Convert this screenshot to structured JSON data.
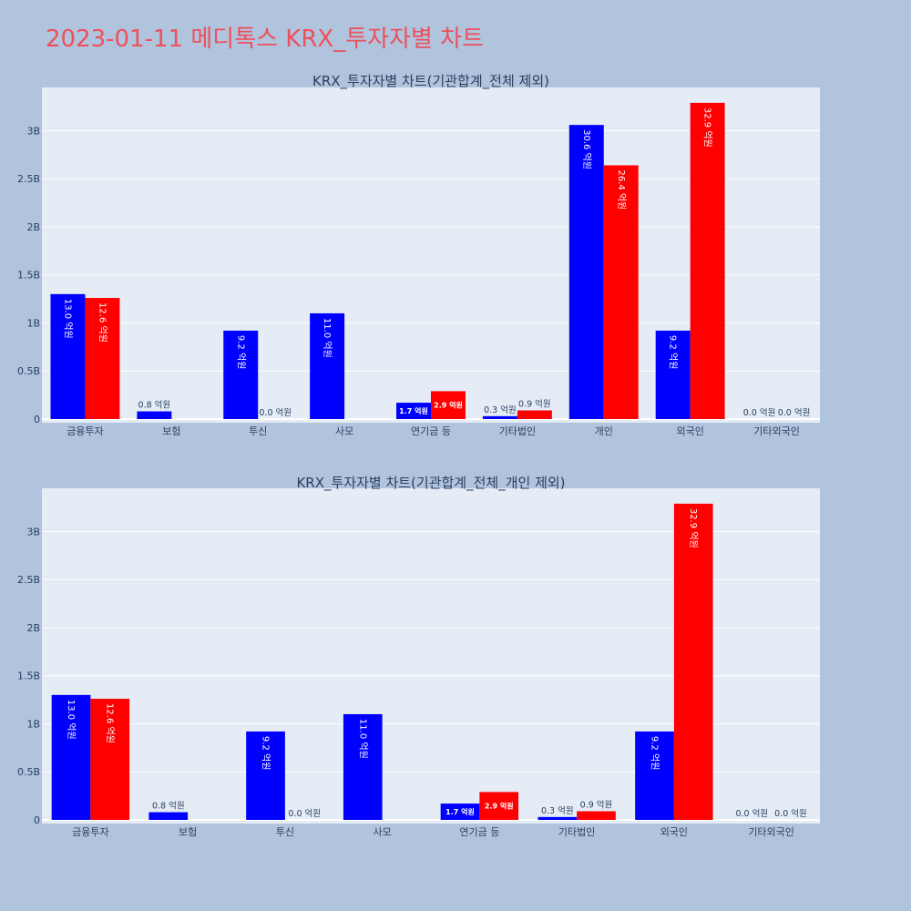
{
  "title": "2023-01-11 메디톡스 KRX_투자자별 차트",
  "colors": {
    "series_1": "#0000ff",
    "series_2": "#ff0000",
    "title": "#ef4f5c",
    "plot_bg": "#e5ecf6",
    "page_bg": "#b0c4de"
  },
  "chart_data": [
    {
      "type": "bar",
      "title": "KRX_투자자별 차트(기관합계_전체 제외)",
      "categories": [
        "금융투자",
        "보험",
        "투신",
        "사모",
        "연기금 등",
        "기타법인",
        "개인",
        "외국인",
        "기타외국인"
      ],
      "series": [
        {
          "values": [
            1300000000,
            80000000,
            920000000,
            1100000000,
            170000000,
            30000000,
            3060000000,
            920000000,
            0
          ],
          "labels": [
            "13.0 억원",
            "0.8 억원",
            "9.2 억원",
            "11.0 억원",
            "1.7 억원",
            "0.3 억원",
            "30.6 억원",
            "9.2 억원",
            "0.0 억원"
          ]
        },
        {
          "values": [
            1260000000,
            null,
            0,
            null,
            290000000,
            90000000,
            2640000000,
            3290000000,
            0
          ],
          "labels": [
            "12.6 억원",
            "",
            "0.0 억원",
            "",
            "2.9 억원",
            "0.9 억원",
            "26.4 억원",
            "32.9 억원",
            "0.0 억원"
          ]
        }
      ],
      "ylim": [
        0,
        3450000000
      ],
      "yticks": [
        0,
        500000000,
        1000000000,
        1500000000,
        2000000000,
        2500000000,
        3000000000
      ],
      "ytick_labels": [
        "0",
        "0.5B",
        "1B",
        "1.5B",
        "2B",
        "2.5B",
        "3B"
      ],
      "grid": true,
      "legend": "none"
    },
    {
      "type": "bar",
      "title": "KRX_투자자별 차트(기관합계_전체_개인 제외)",
      "categories": [
        "금융투자",
        "보험",
        "투신",
        "사모",
        "연기금 등",
        "기타법인",
        "외국인",
        "기타외국인"
      ],
      "series": [
        {
          "values": [
            1300000000,
            80000000,
            920000000,
            1100000000,
            170000000,
            30000000,
            920000000,
            0
          ],
          "labels": [
            "13.0 억원",
            "0.8 억원",
            "9.2 억원",
            "11.0 억원",
            "1.7 억원",
            "0.3 억원",
            "9.2 억원",
            "0.0 억원"
          ]
        },
        {
          "values": [
            1260000000,
            null,
            0,
            null,
            290000000,
            90000000,
            3290000000,
            0
          ],
          "labels": [
            "12.6 억원",
            "",
            "0.0 억원",
            "",
            "2.9 억원",
            "0.9 억원",
            "32.9 억원",
            "0.0 억원"
          ]
        }
      ],
      "ylim": [
        0,
        3450000000
      ],
      "yticks": [
        0,
        500000000,
        1000000000,
        1500000000,
        2000000000,
        2500000000,
        3000000000
      ],
      "ytick_labels": [
        "0",
        "0.5B",
        "1B",
        "1.5B",
        "2B",
        "2.5B",
        "3B"
      ],
      "grid": true,
      "legend": "none"
    }
  ]
}
